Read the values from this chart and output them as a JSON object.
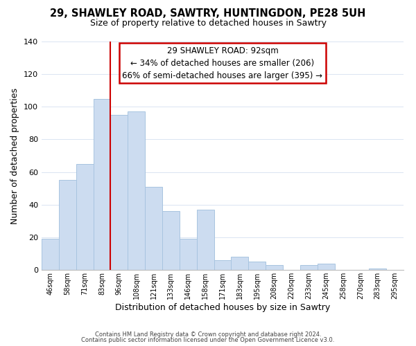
{
  "title": "29, SHAWLEY ROAD, SAWTRY, HUNTINGDON, PE28 5UH",
  "subtitle": "Size of property relative to detached houses in Sawtry",
  "xlabel": "Distribution of detached houses by size in Sawtry",
  "ylabel": "Number of detached properties",
  "bar_labels": [
    "46sqm",
    "58sqm",
    "71sqm",
    "83sqm",
    "96sqm",
    "108sqm",
    "121sqm",
    "133sqm",
    "146sqm",
    "158sqm",
    "171sqm",
    "183sqm",
    "195sqm",
    "208sqm",
    "220sqm",
    "233sqm",
    "245sqm",
    "258sqm",
    "270sqm",
    "283sqm",
    "295sqm"
  ],
  "bar_values": [
    19,
    55,
    65,
    105,
    95,
    97,
    51,
    36,
    19,
    37,
    6,
    8,
    5,
    3,
    0,
    3,
    4,
    0,
    0,
    1,
    0
  ],
  "bar_color": "#ccdcf0",
  "bar_edge_color": "#a8c4e0",
  "vline_color": "#cc0000",
  "ylim": [
    0,
    140
  ],
  "yticks": [
    0,
    20,
    40,
    60,
    80,
    100,
    120,
    140
  ],
  "annotation_title": "29 SHAWLEY ROAD: 92sqm",
  "annotation_line1": "← 34% of detached houses are smaller (206)",
  "annotation_line2": "66% of semi-detached houses are larger (395) →",
  "annotation_box_color": "#ffffff",
  "annotation_box_edge": "#cc0000",
  "footer1": "Contains HM Land Registry data © Crown copyright and database right 2024.",
  "footer2": "Contains public sector information licensed under the Open Government Licence v3.0."
}
